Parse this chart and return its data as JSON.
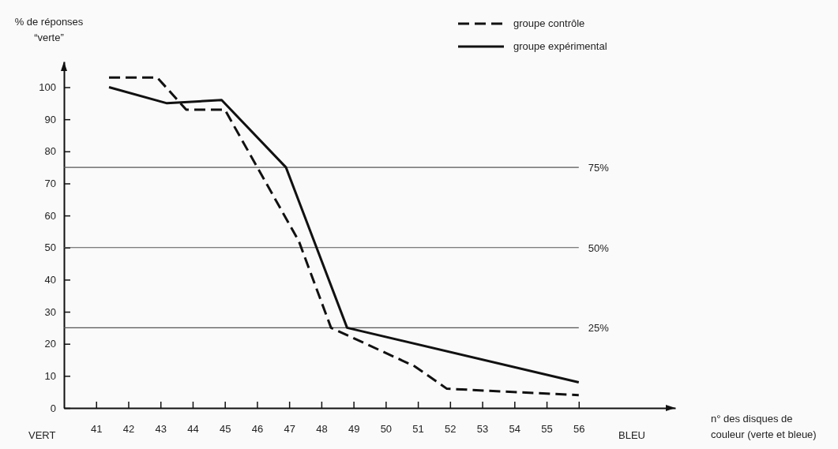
{
  "chart_data": {
    "type": "line",
    "ylabel": "% de réponses\n“verte”",
    "xlabel": "n° des disques de\ncouleur (verte et bleue)",
    "xlim": [
      40,
      59
    ],
    "xticks": [
      41,
      42,
      43,
      44,
      45,
      46,
      47,
      48,
      49,
      50,
      51,
      52,
      53,
      54,
      55,
      56
    ],
    "ylim": [
      0,
      108
    ],
    "yticks": [
      0,
      10,
      20,
      30,
      40,
      50,
      60,
      70,
      80,
      90,
      100
    ],
    "grid": false,
    "legend": "top right",
    "marker": "none",
    "series": [
      {
        "name": "groupe contrôle",
        "color": "#111111",
        "line_style": "dashed",
        "x": [
          41.4,
          42.9,
          43.8,
          45,
          47.3,
          48.3,
          50.9,
          51.9,
          56
        ],
        "values": [
          103,
          103,
          93,
          93,
          52,
          25,
          13,
          6,
          4
        ]
      },
      {
        "name": "groupe expérimental",
        "color": "#111111",
        "line_style": "solid",
        "x": [
          41.4,
          43.2,
          44.9,
          46.9,
          48.8,
          56
        ],
        "values": [
          100,
          95,
          96,
          75,
          25,
          8
        ]
      }
    ],
    "ref_lines": [
      {
        "axis": "y",
        "value": 75,
        "label": "75%",
        "color": "#555555"
      },
      {
        "axis": "y",
        "value": 50,
        "label": "50%",
        "color": "#555555"
      },
      {
        "axis": "y",
        "value": 25,
        "label": "25%",
        "color": "#555555"
      }
    ],
    "annotations": [
      "VERT",
      "BLEU"
    ]
  }
}
